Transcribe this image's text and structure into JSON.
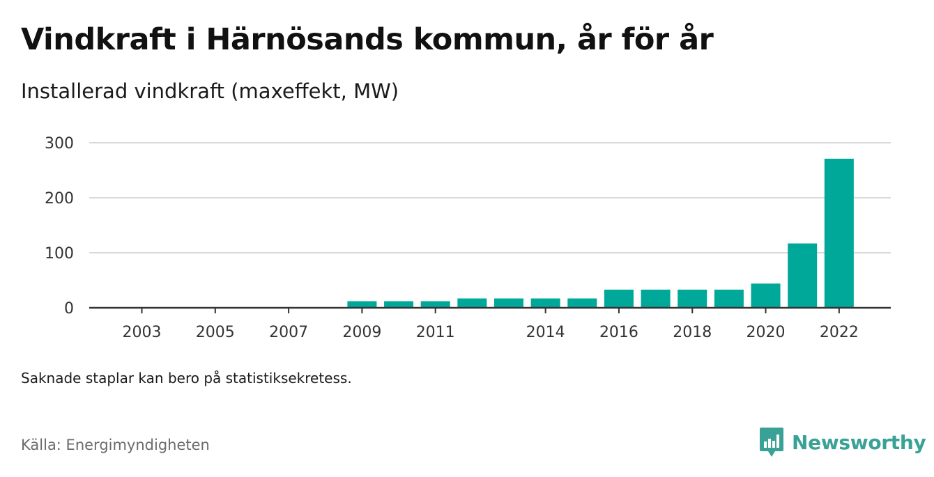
{
  "header": {
    "title": "Vindkraft i Härnösands kommun, år för år",
    "subtitle": "Installerad vindkraft (maxeffekt, MW)"
  },
  "footer": {
    "note": "Saknade staplar kan bero på statistiksekretess.",
    "source": "Källa: Energimyndigheten",
    "brand": "Newsworthy"
  },
  "colors": {
    "bar": "#00a89a",
    "brand": "#3aa196",
    "grid": "#d9d9d9",
    "axis": "#333333"
  },
  "chart_data": {
    "type": "bar",
    "categories": [
      "2003",
      "2004",
      "2005",
      "2006",
      "2007",
      "2008",
      "2009",
      "2010",
      "2011",
      "2012",
      "2013",
      "2014",
      "2015",
      "2016",
      "2017",
      "2018",
      "2019",
      "2020",
      "2021",
      "2022"
    ],
    "values": [
      0,
      0,
      0,
      0,
      0,
      0,
      12,
      12,
      12,
      17,
      17,
      17,
      17,
      33,
      33,
      33,
      33,
      44,
      117,
      271
    ],
    "x_tick_labels": [
      "2003",
      "2005",
      "2007",
      "2009",
      "2011",
      "2014",
      "2016",
      "2018",
      "2020",
      "2022"
    ],
    "y_ticks": [
      0,
      100,
      200,
      300
    ],
    "ylim": [
      0,
      300
    ],
    "xlabel": "",
    "ylabel": "",
    "grid": true,
    "legend": "none"
  }
}
